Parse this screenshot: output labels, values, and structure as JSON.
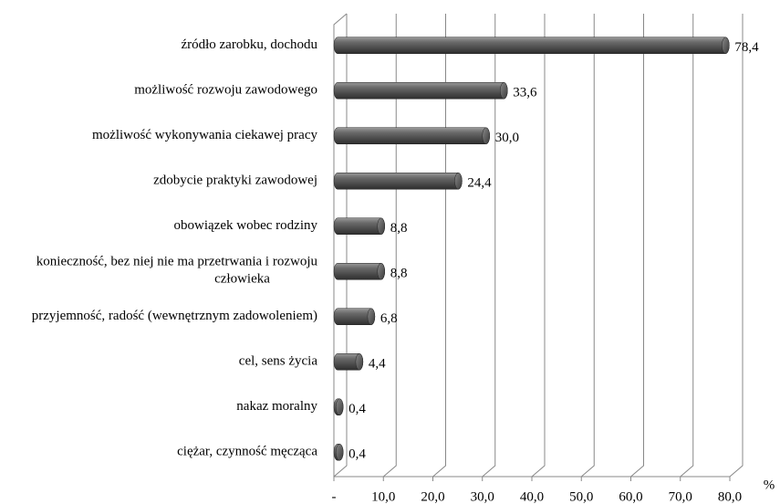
{
  "chart_data": {
    "type": "bar3d",
    "categories": [
      "źródło zarobku, dochodu",
      "możliwość rozwoju zawodowego",
      "możliwość wykonywania ciekawej pracy",
      "zdobycie praktyki zawodowej",
      "obowiązek wobec rodziny",
      "konieczność, bez niej nie ma przetrwania i rozwoju człowieka",
      "przyjemność, radość (wewnętrznym zadowoleniem)",
      "cel, sens życia",
      "nakaz moralny",
      "ciężar, czynność męcząca"
    ],
    "values": [
      78.4,
      33.6,
      30.0,
      24.4,
      8.8,
      8.8,
      6.8,
      4.4,
      0.4,
      0.4
    ],
    "value_labels": [
      "78,4",
      "33,6",
      "30,0",
      "24,4",
      "8,8",
      "8,8",
      "6,8",
      "4,4",
      "0,4",
      "0,4"
    ],
    "color": "#5a5a5a",
    "xlim": [
      0,
      80
    ],
    "xticks": [
      {
        "value": 0,
        "label": "-"
      },
      {
        "value": 10,
        "label": "10,0"
      },
      {
        "value": 20,
        "label": "20,0"
      },
      {
        "value": 30,
        "label": "30,0"
      },
      {
        "value": 40,
        "label": "40,0"
      },
      {
        "value": 50,
        "label": "50,0"
      },
      {
        "value": 60,
        "label": "60,0"
      },
      {
        "value": 70,
        "label": "70,0"
      },
      {
        "value": 80,
        "label": "80,0"
      }
    ],
    "xlabel": "%",
    "grid": true
  }
}
